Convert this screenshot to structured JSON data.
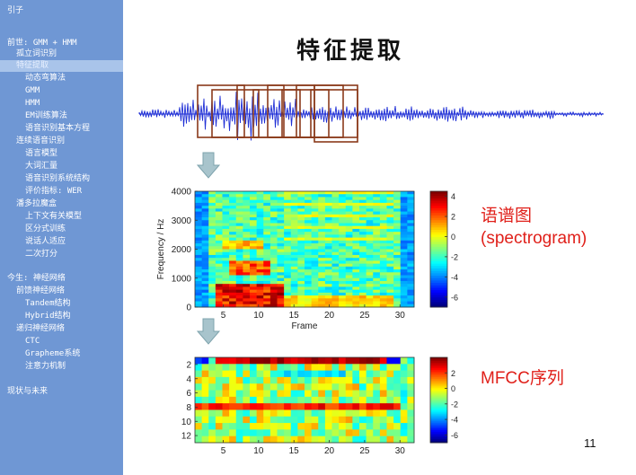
{
  "sidebar": {
    "items": [
      {
        "label": "引子"
      },
      {
        "label": "前世: GMM + HMM"
      },
      {
        "label": "孤立词识别"
      },
      {
        "label": "特征提取"
      },
      {
        "label": "动态弯算法"
      },
      {
        "label": "GMM"
      },
      {
        "label": "HMM"
      },
      {
        "label": "EM训练算法"
      },
      {
        "label": "语音识别基本方程"
      },
      {
        "label": "连续语音识别"
      },
      {
        "label": "语言模型"
      },
      {
        "label": "大词汇量"
      },
      {
        "label": "语音识别系统结构"
      },
      {
        "label": "评价指标: WER"
      },
      {
        "label": "潘多拉魔盒"
      },
      {
        "label": "上下文有关模型"
      },
      {
        "label": "区分式训练"
      },
      {
        "label": "说话人适应"
      },
      {
        "label": "二次打分"
      },
      {
        "label": "今生: 神经网络"
      },
      {
        "label": "前馈神经网络"
      },
      {
        "label": "Tandem结构"
      },
      {
        "label": "Hybrid结构"
      },
      {
        "label": "递归神经网络"
      },
      {
        "label": "CTC"
      },
      {
        "label": "Grapheme系统"
      },
      {
        "label": "注意力机制"
      },
      {
        "label": "现状与未来"
      }
    ],
    "active_index": 3
  },
  "slide": {
    "title": "特征提取",
    "spectrogram_label_line1": "语谱图",
    "spectrogram_label_line2": "(spectrogram)",
    "mfcc_label": "MFCC序列",
    "page_number": "11"
  },
  "colors": {
    "sidebar_bg": "#6f97d4",
    "sidebar_active": "#a9c4ea",
    "waveform": "#1f2fd6",
    "frame_box": "#8a3a1a",
    "arrow": "#a8c4cc",
    "label_red": "#e0201a"
  },
  "chart_data": [
    {
      "type": "heatmap",
      "title": "",
      "xlabel": "Frame",
      "ylabel": "Frequency / Hz",
      "x_ticks": [
        5,
        10,
        15,
        20,
        25,
        30
      ],
      "y_ticks": [
        0,
        1000,
        2000,
        3000,
        4000
      ],
      "xlim": [
        1,
        32
      ],
      "ylim": [
        0,
        4000
      ],
      "colorbar_ticks": [
        4,
        2,
        0,
        -2,
        -4,
        -6
      ],
      "colorbar_range": [
        -7,
        4.5
      ],
      "colormap": "jet"
    },
    {
      "type": "heatmap",
      "title": "",
      "xlabel": "",
      "ylabel": "",
      "x_ticks": [
        5,
        10,
        15,
        20,
        25,
        30
      ],
      "y_ticks": [
        2,
        4,
        6,
        8,
        10,
        12
      ],
      "xlim": [
        1,
        32
      ],
      "ylim": [
        1,
        13
      ],
      "colorbar_ticks": [
        2,
        0,
        -2,
        -4,
        -6
      ],
      "colorbar_range": [
        -7,
        4
      ],
      "colormap": "jet"
    }
  ]
}
